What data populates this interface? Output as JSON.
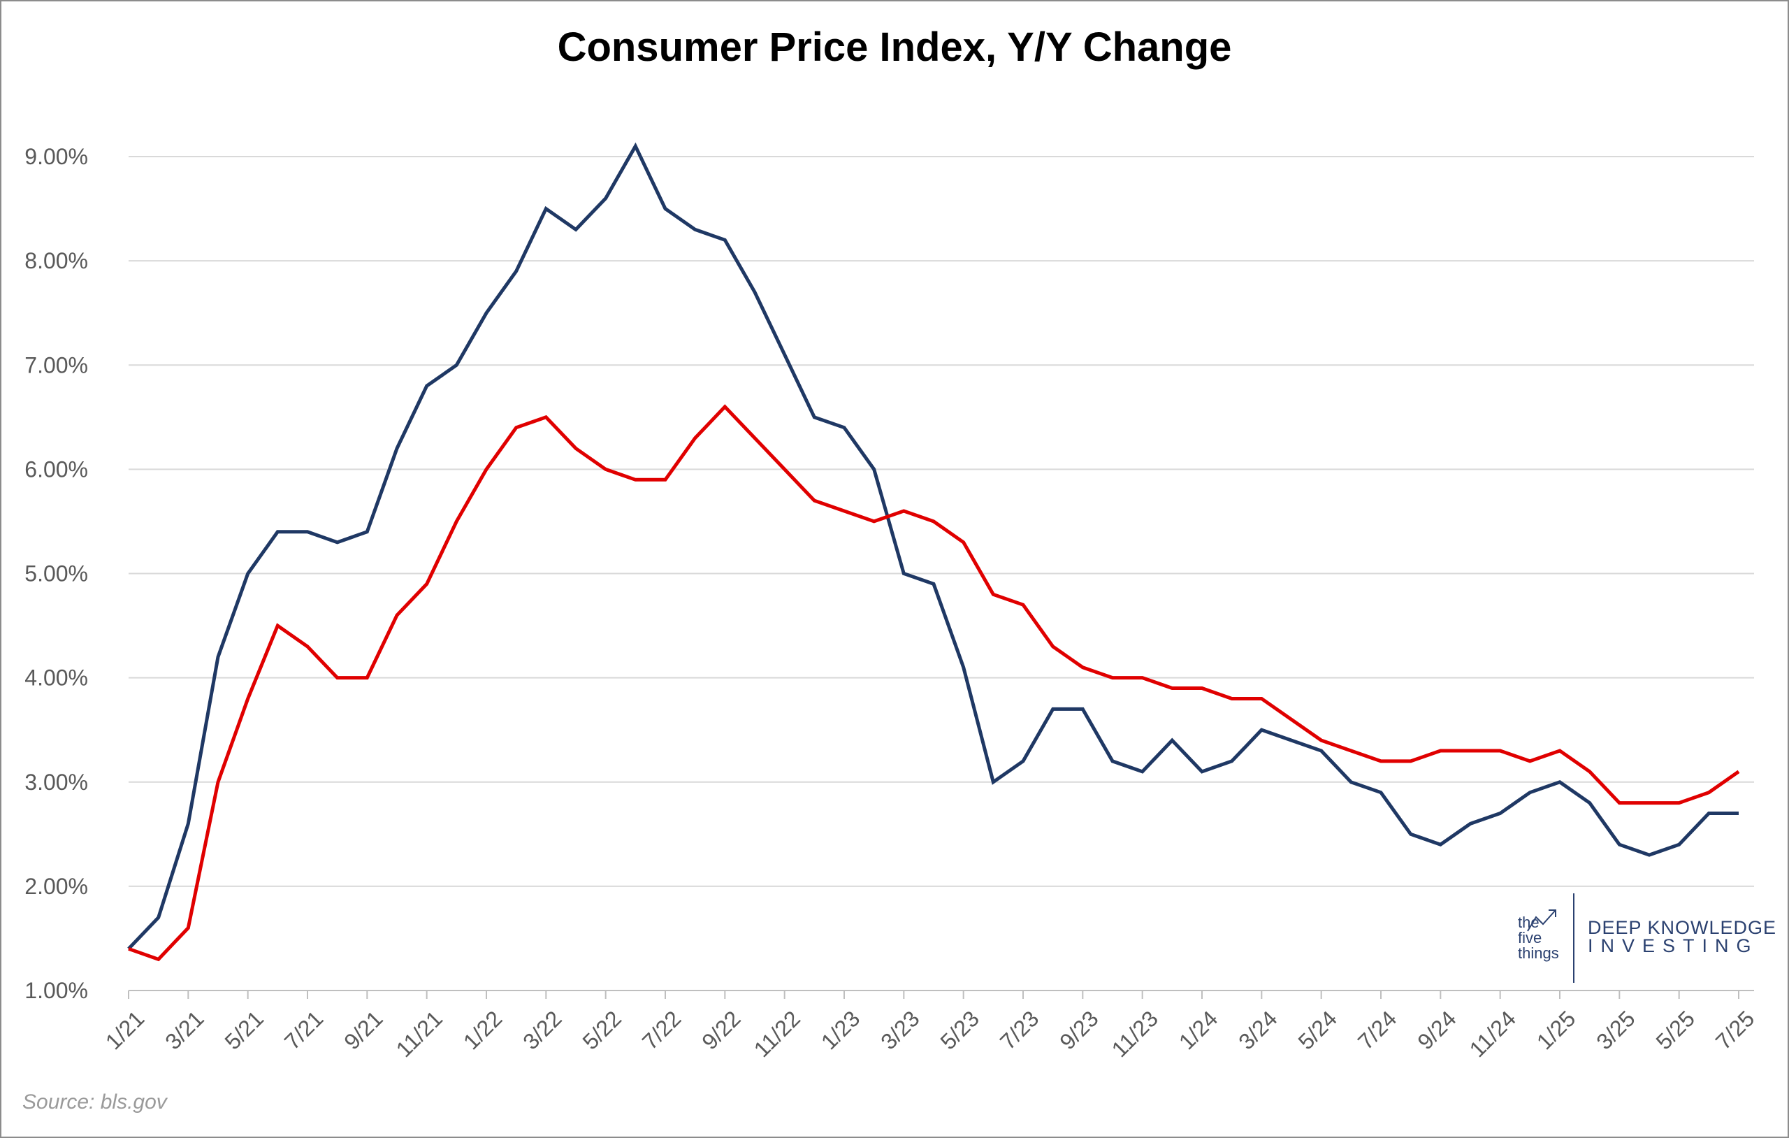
{
  "chart_data": {
    "type": "line",
    "title": "Consumer Price Index, Y/Y Change",
    "source": "Source: bls.gov",
    "ylim": [
      1,
      9
    ],
    "yticks": [
      1,
      2,
      3,
      4,
      5,
      6,
      7,
      8,
      9
    ],
    "y_tick_labels": [
      "1.00%",
      "2.00%",
      "3.00%",
      "4.00%",
      "5.00%",
      "6.00%",
      "7.00%",
      "8.00%",
      "9.00%"
    ],
    "x": [
      "1/21",
      "2/21",
      "3/21",
      "4/21",
      "5/21",
      "6/21",
      "7/21",
      "8/21",
      "9/21",
      "10/21",
      "11/21",
      "12/21",
      "1/22",
      "2/22",
      "3/22",
      "4/22",
      "5/22",
      "6/22",
      "7/22",
      "8/22",
      "9/22",
      "10/22",
      "11/22",
      "12/22",
      "1/23",
      "2/23",
      "3/23",
      "4/23",
      "5/23",
      "6/23",
      "7/23",
      "8/23",
      "9/23",
      "10/23",
      "11/23",
      "12/23",
      "1/24",
      "2/24",
      "3/24",
      "4/24",
      "5/24",
      "6/24",
      "7/24",
      "8/24",
      "9/24",
      "10/24",
      "11/24",
      "12/24",
      "1/25",
      "2/25",
      "3/25",
      "4/25",
      "5/25",
      "6/25",
      "7/25"
    ],
    "x_tick_labels": [
      "1/21",
      "3/21",
      "5/21",
      "7/21",
      "9/21",
      "11/21",
      "1/22",
      "3/22",
      "5/22",
      "7/22",
      "9/22",
      "11/22",
      "1/23",
      "3/23",
      "5/23",
      "7/23",
      "9/23",
      "11/23",
      "1/24",
      "3/24",
      "5/24",
      "7/24",
      "9/24",
      "11/24",
      "1/25",
      "3/25",
      "5/25",
      "7/25"
    ],
    "series": [
      {
        "color": "#1f3864",
        "values": [
          1.4,
          1.7,
          2.6,
          4.2,
          5.0,
          5.4,
          5.4,
          5.3,
          5.4,
          6.2,
          6.8,
          7.0,
          7.5,
          7.9,
          8.5,
          8.3,
          8.6,
          9.1,
          8.5,
          8.3,
          8.2,
          7.7,
          7.1,
          6.5,
          6.4,
          6.0,
          5.0,
          4.9,
          4.1,
          3.0,
          3.2,
          3.7,
          3.7,
          3.2,
          3.1,
          3.4,
          3.1,
          3.2,
          3.5,
          3.4,
          3.3,
          3.0,
          2.9,
          2.5,
          2.4,
          2.6,
          2.7,
          2.9,
          3.0,
          2.8,
          2.4,
          2.3,
          2.4,
          2.7,
          2.7
        ]
      },
      {
        "color": "#e00000",
        "values": [
          1.4,
          1.3,
          1.6,
          3.0,
          3.8,
          4.5,
          4.3,
          4.0,
          4.0,
          4.6,
          4.9,
          5.5,
          6.0,
          6.4,
          6.5,
          6.2,
          6.0,
          5.9,
          5.9,
          6.3,
          6.6,
          6.3,
          6.0,
          5.7,
          5.6,
          5.5,
          5.6,
          5.5,
          5.3,
          4.8,
          4.7,
          4.3,
          4.1,
          4.0,
          4.0,
          3.9,
          3.9,
          3.8,
          3.8,
          3.6,
          3.4,
          3.3,
          3.2,
          3.2,
          3.3,
          3.3,
          3.3,
          3.2,
          3.3,
          3.1,
          2.8,
          2.8,
          2.8,
          2.9,
          3.1
        ]
      }
    ],
    "grid": true,
    "legend": "none"
  },
  "logo": {
    "line1": "the",
    "line2": "five",
    "line3": "things",
    "brand_top": "DEEP KNOWLEDGE",
    "brand_bottom": "INVESTING"
  }
}
